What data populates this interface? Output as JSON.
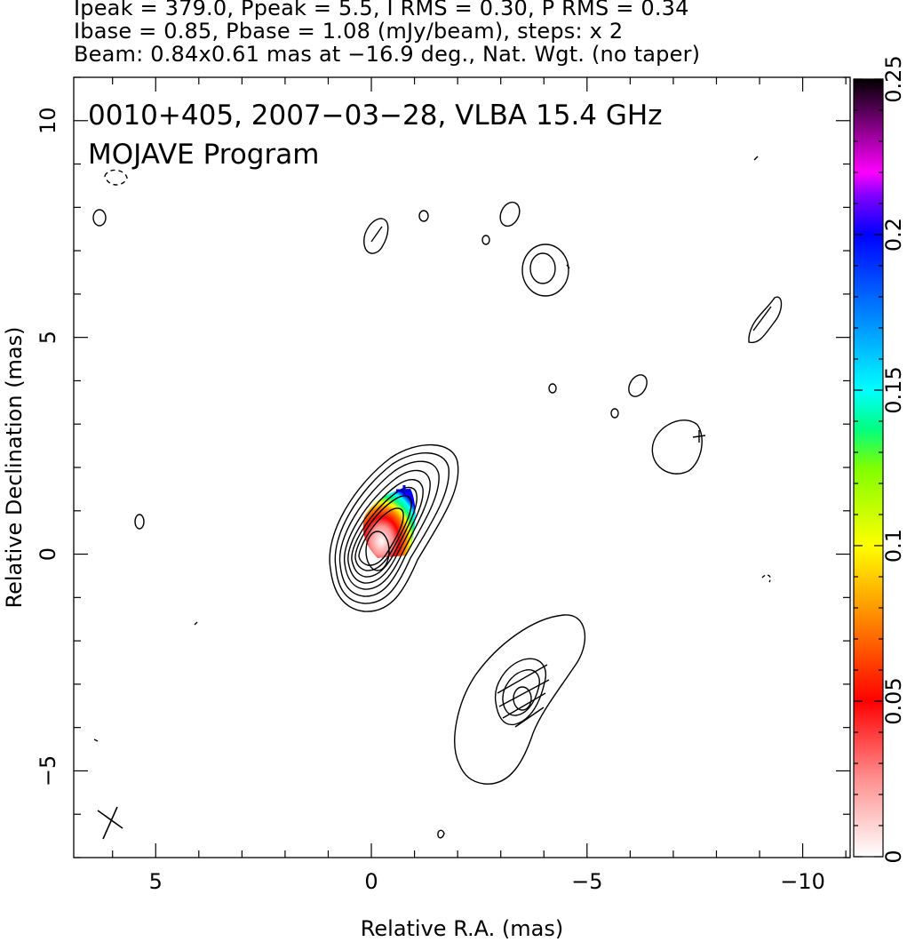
{
  "header": {
    "line1": "Ipeak = 379.0, Ppeak = 5.5, I RMS = 0.30, P RMS = 0.34",
    "line2": "Ibase = 0.85, Pbase = 1.08 (mJy/beam), steps: x 2",
    "line3": "Beam: 0.84x0.61 mas at −16.9 deg., Nat. Wgt. (no taper)"
  },
  "chart_data": {
    "type": "heatmap",
    "title_lines": [
      "0010+405, 2007−03−28, VLBA 15.4 GHz",
      "MOJAVE Program"
    ],
    "xlabel": "Relative R.A. (mas)",
    "ylabel": "Relative Declination (mas)",
    "xlim": [
      6.9,
      -11.1
    ],
    "ylim": [
      -7.0,
      11.0
    ],
    "x_ticks": [
      5,
      0,
      -5,
      -10
    ],
    "x_tick_labels": [
      "5",
      "0",
      "−5",
      "−10"
    ],
    "y_ticks": [
      -5,
      0,
      5,
      10
    ],
    "y_tick_labels": [
      "−5",
      "0",
      "5",
      "10"
    ],
    "colorbar": {
      "range": [
        0,
        0.25
      ],
      "ticks": [
        0,
        0.05,
        0.1,
        0.15,
        0.2,
        0.25
      ],
      "tick_labels": [
        "0",
        "0.05",
        "0.1",
        "0.15",
        "0.2",
        "0.25"
      ],
      "colors": [
        "#ffffff",
        "#ff9090",
        "#ff0000",
        "#ff8000",
        "#ffff00",
        "#80ff00",
        "#00ff80",
        "#00ffff",
        "#0080ff",
        "#0000ff",
        "#8000ff",
        "#ff00ff",
        "#800080",
        "#000000"
      ]
    },
    "grid": false,
    "core": {
      "x": 0.0,
      "y": 0.0
    },
    "jet_component": {
      "x": -3.4,
      "y": -3.4
    }
  }
}
